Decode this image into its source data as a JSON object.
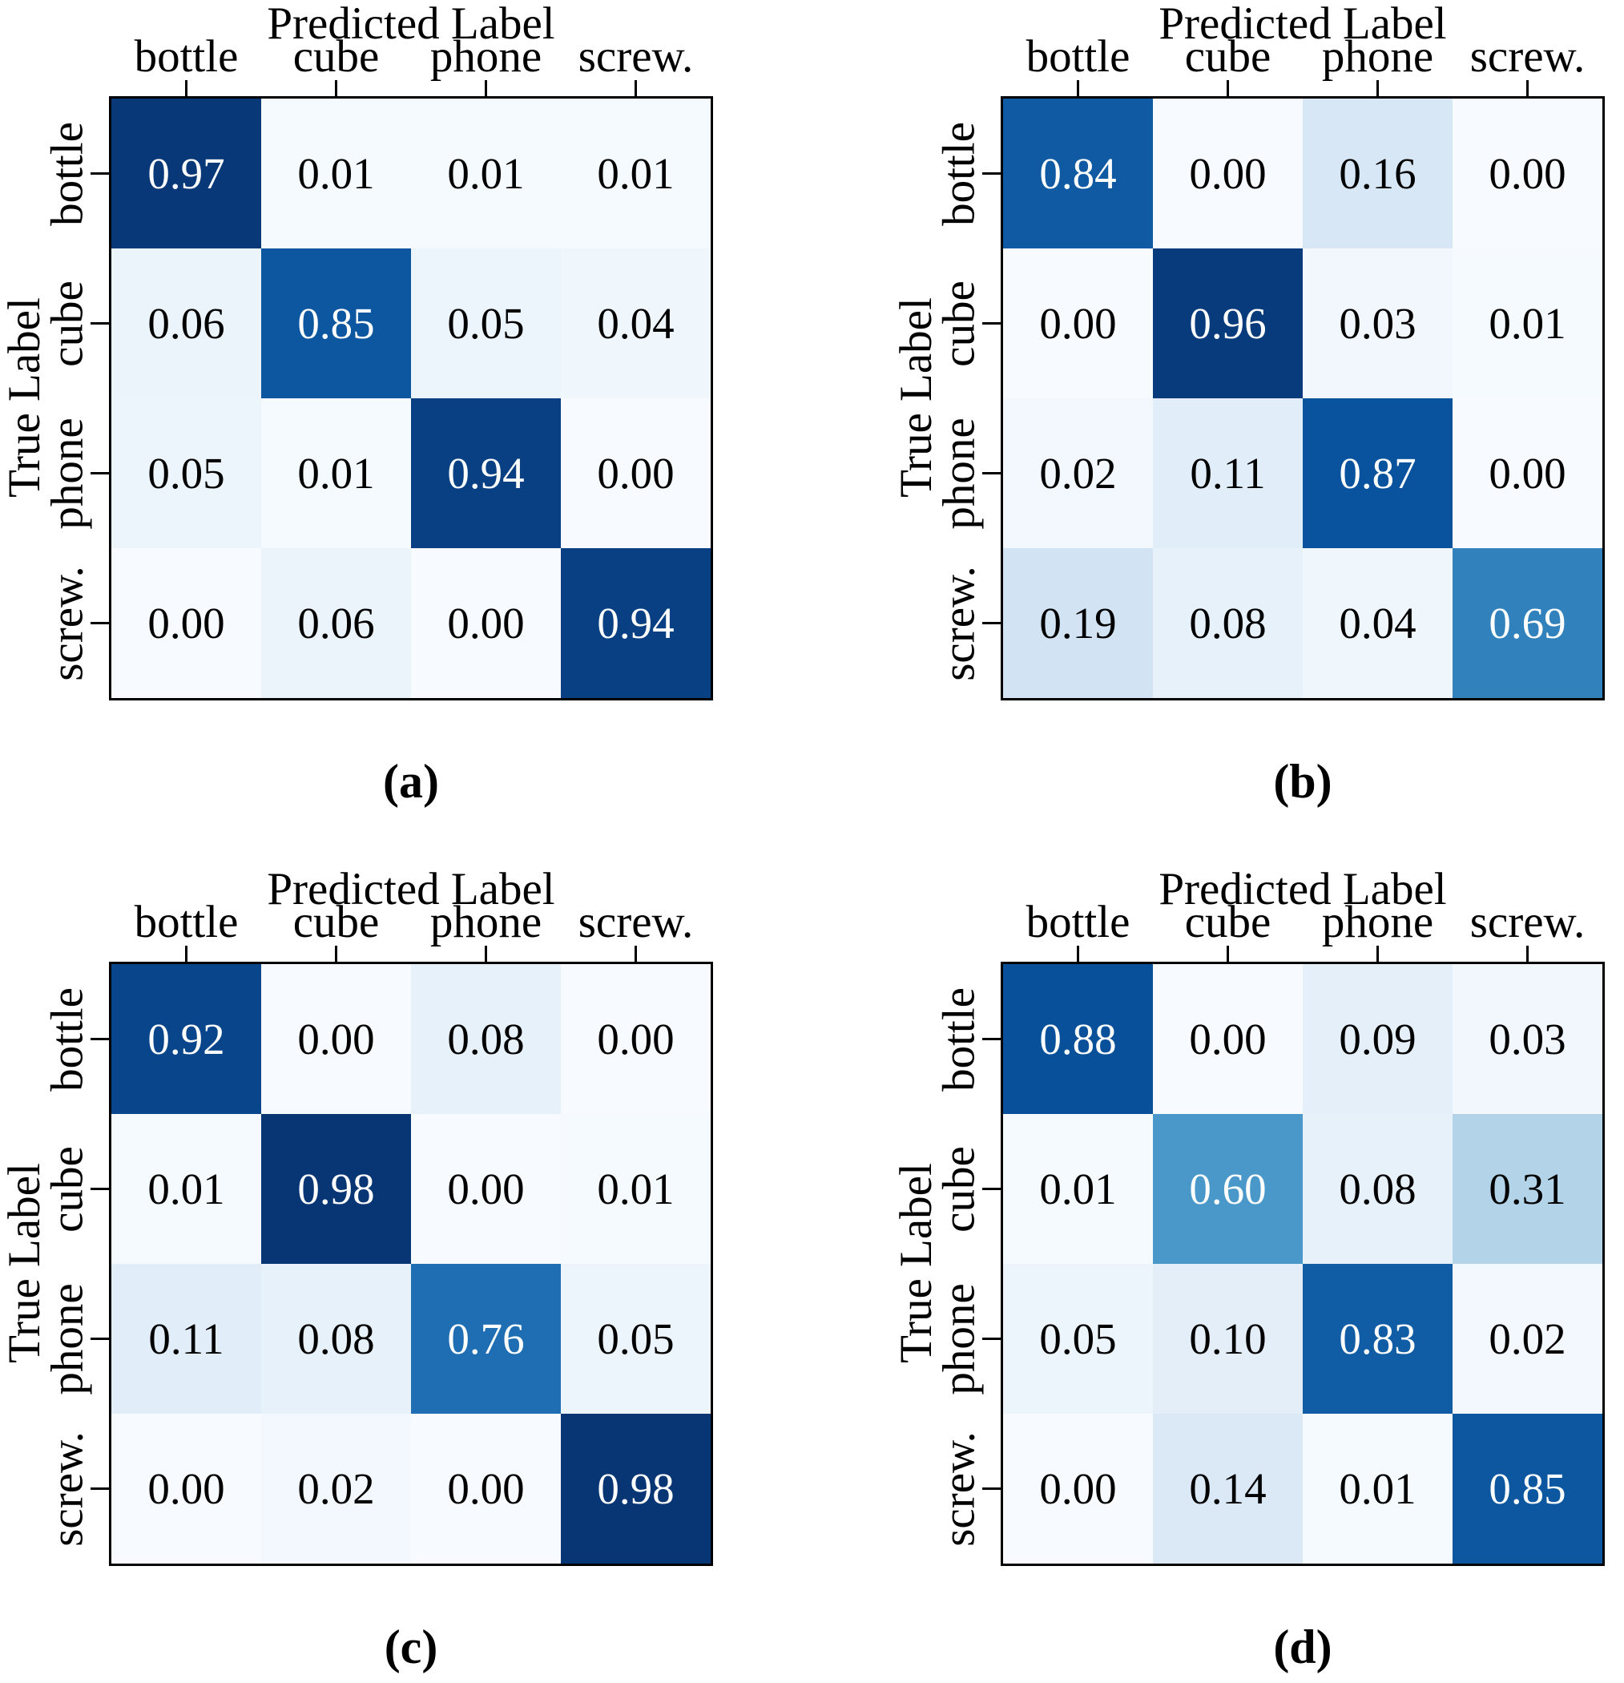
{
  "chart_data": [
    {
      "id": "a",
      "type": "heatmap",
      "title": "Predicted Label",
      "ylabel": "True Label",
      "caption": "(a)",
      "classes": [
        "bottle",
        "cube",
        "phone",
        "screw."
      ],
      "matrix": [
        [
          0.97,
          0.01,
          0.01,
          0.01
        ],
        [
          0.06,
          0.85,
          0.05,
          0.04
        ],
        [
          0.05,
          0.01,
          0.94,
          0.0
        ],
        [
          0.0,
          0.06,
          0.0,
          0.94
        ]
      ],
      "colormap": "Blues",
      "vmin": 0,
      "vmax": 1
    },
    {
      "id": "b",
      "type": "heatmap",
      "title": "Predicted Label",
      "ylabel": "True Label",
      "caption": "(b)",
      "classes": [
        "bottle",
        "cube",
        "phone",
        "screw."
      ],
      "matrix": [
        [
          0.84,
          0.0,
          0.16,
          0.0
        ],
        [
          0.0,
          0.96,
          0.03,
          0.01
        ],
        [
          0.02,
          0.11,
          0.87,
          0.0
        ],
        [
          0.19,
          0.08,
          0.04,
          0.69
        ]
      ],
      "colormap": "Blues",
      "vmin": 0,
      "vmax": 1
    },
    {
      "id": "c",
      "type": "heatmap",
      "title": "Predicted Label",
      "ylabel": "True Label",
      "caption": "(c)",
      "classes": [
        "bottle",
        "cube",
        "phone",
        "screw."
      ],
      "matrix": [
        [
          0.92,
          0.0,
          0.08,
          0.0
        ],
        [
          0.01,
          0.98,
          0.0,
          0.01
        ],
        [
          0.11,
          0.08,
          0.76,
          0.05
        ],
        [
          0.0,
          0.02,
          0.0,
          0.98
        ]
      ],
      "colormap": "Blues",
      "vmin": 0,
      "vmax": 1
    },
    {
      "id": "d",
      "type": "heatmap",
      "title": "Predicted Label",
      "ylabel": "True Label",
      "caption": "(d)",
      "classes": [
        "bottle",
        "cube",
        "phone",
        "screw."
      ],
      "matrix": [
        [
          0.88,
          0.0,
          0.09,
          0.03
        ],
        [
          0.01,
          0.6,
          0.08,
          0.31
        ],
        [
          0.05,
          0.1,
          0.83,
          0.02
        ],
        [
          0.0,
          0.14,
          0.01,
          0.85
        ]
      ],
      "colormap": "Blues",
      "vmin": 0,
      "vmax": 1
    }
  ],
  "styles": {
    "background": "#ffffff",
    "axis_color": "#000000",
    "cell_text_dark": "#000000",
    "cell_text_light": "#ffffff",
    "white_text_threshold": 0.5,
    "value_decimals": 2
  }
}
